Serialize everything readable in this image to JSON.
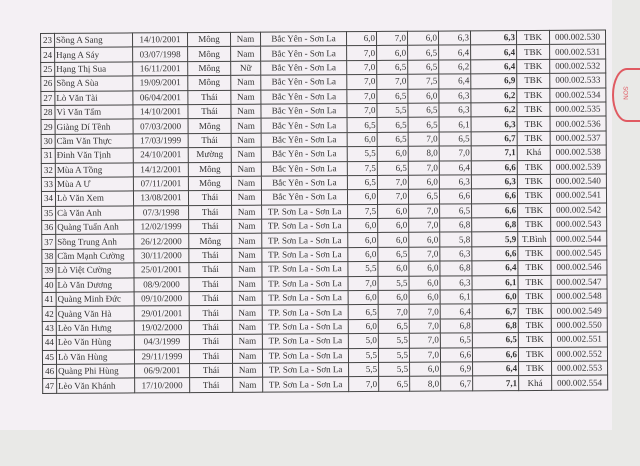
{
  "stamp_text": "SƠN",
  "rows": [
    [
      "23",
      "Sồng A Sang",
      "14/10/2001",
      "Mông",
      "Nam",
      "Bắc Yên - Sơn La",
      "6,0",
      "7,0",
      "6,0",
      "6,3",
      "6,3",
      "TBK",
      "000.002.530"
    ],
    [
      "24",
      "Hạng A Sáy",
      "03/07/1998",
      "Mông",
      "Nam",
      "Bắc Yên - Sơn La",
      "7,0",
      "6,0",
      "6,5",
      "6,4",
      "6,4",
      "TBK",
      "000.002.531"
    ],
    [
      "25",
      "Hạng Thị Sua",
      "16/11/2001",
      "Mông",
      "Nữ",
      "Bắc Yên - Sơn La",
      "7,0",
      "6,5",
      "6,5",
      "6,2",
      "6,4",
      "TBK",
      "000.002.532"
    ],
    [
      "26",
      "Sồng A Sùa",
      "19/09/2001",
      "Mông",
      "Nam",
      "Bắc Yên - Sơn La",
      "7,0",
      "7,0",
      "7,5",
      "6,4",
      "6,9",
      "TBK",
      "000.002.533"
    ],
    [
      "27",
      "Lò Văn Tài",
      "06/04/2001",
      "Thái",
      "Nam",
      "Bắc Yên - Sơn La",
      "7,0",
      "6,5",
      "6,0",
      "6,3",
      "6,2",
      "TBK",
      "000.002.534"
    ],
    [
      "28",
      "Vì Văn Tấm",
      "14/10/2001",
      "Thái",
      "Nam",
      "Bắc Yên - Sơn La",
      "7,0",
      "5,5",
      "6,5",
      "6,3",
      "6,2",
      "TBK",
      "000.002.535"
    ],
    [
      "29",
      "Giàng Dí Tềnh",
      "07/03/2000",
      "Mông",
      "Nam",
      "Bắc Yên - Sơn La",
      "6,5",
      "6,5",
      "6,5",
      "6,1",
      "6,3",
      "TBK",
      "000.002.536"
    ],
    [
      "30",
      "Cầm Văn Thực",
      "17/03/1999",
      "Thái",
      "Nam",
      "Bắc Yên - Sơn La",
      "6,0",
      "6,5",
      "7,0",
      "6,5",
      "6,7",
      "TBK",
      "000.002.537"
    ],
    [
      "31",
      "Đinh Văn Tịnh",
      "24/10/2001",
      "Mường",
      "Nam",
      "Bắc Yên - Sơn La",
      "5,5",
      "6,0",
      "8,0",
      "7,0",
      "7,1",
      "Khá",
      "000.002.538"
    ],
    [
      "32",
      "Mùa A Tồng",
      "14/12/2001",
      "Mông",
      "Nam",
      "Bắc Yên - Sơn La",
      "7,5",
      "6,5",
      "7,0",
      "6,4",
      "6,6",
      "TBK",
      "000.002.539"
    ],
    [
      "33",
      "Mùa A Ư",
      "07/11/2001",
      "Mông",
      "Nam",
      "Bắc Yên - Sơn La",
      "6,5",
      "7,0",
      "6,0",
      "6,3",
      "6,3",
      "TBK",
      "000.002.540"
    ],
    [
      "34",
      "Lò Văn Xem",
      "13/08/2001",
      "Thái",
      "Nam",
      "Bắc Yên - Sơn La",
      "6,0",
      "7,0",
      "6,5",
      "6,6",
      "6,6",
      "TBK",
      "000.002.541"
    ],
    [
      "35",
      "Cà Văn Anh",
      "07/3/1998",
      "Thái",
      "Nam",
      "TP. Sơn La - Sơn La",
      "7,5",
      "6,0",
      "7,0",
      "6,5",
      "6,6",
      "TBK",
      "000.002.542"
    ],
    [
      "36",
      "Quàng Tuấn Anh",
      "12/02/1999",
      "Thái",
      "Nam",
      "TP. Sơn La - Sơn La",
      "6,0",
      "6,0",
      "7,0",
      "6,8",
      "6,8",
      "TBK",
      "000.002.543"
    ],
    [
      "37",
      "Sồng Trung Anh",
      "26/12/2000",
      "Mông",
      "Nam",
      "TP. Sơn La - Sơn La",
      "6,0",
      "6,0",
      "6,0",
      "5,8",
      "5,9",
      "T.Bình",
      "000.002.544"
    ],
    [
      "38",
      "Cầm Mạnh Cường",
      "30/11/2000",
      "Thái",
      "Nam",
      "TP. Sơn La - Sơn La",
      "6,0",
      "6,5",
      "7,0",
      "6,3",
      "6,6",
      "TBK",
      "000.002.545"
    ],
    [
      "39",
      "Lò Việt Cường",
      "25/01/2001",
      "Thái",
      "Nam",
      "TP. Sơn La - Sơn La",
      "5,5",
      "6,0",
      "6,0",
      "6,8",
      "6,4",
      "TBK",
      "000.002.546"
    ],
    [
      "40",
      "Lò Văn Dương",
      "08/9/2000",
      "Thái",
      "Nam",
      "TP. Sơn La - Sơn La",
      "7,0",
      "5,5",
      "6,0",
      "6,3",
      "6,1",
      "TBK",
      "000.002.547"
    ],
    [
      "41",
      "Quàng Minh Đức",
      "09/10/2000",
      "Thái",
      "Nam",
      "TP. Sơn La - Sơn La",
      "6,0",
      "6,0",
      "6,0",
      "6,1",
      "6,0",
      "TBK",
      "000.002.548"
    ],
    [
      "42",
      "Quàng Văn Hà",
      "29/01/2001",
      "Thái",
      "Nam",
      "TP. Sơn La - Sơn La",
      "6,5",
      "7,0",
      "7,0",
      "6,4",
      "6,7",
      "TBK",
      "000.002.549"
    ],
    [
      "43",
      "Lèo Văn Hưng",
      "19/02/2000",
      "Thái",
      "Nam",
      "TP. Sơn La - Sơn La",
      "6,0",
      "6,5",
      "7,0",
      "6,8",
      "6,8",
      "TBK",
      "000.002.550"
    ],
    [
      "44",
      "Lèo Văn Hùng",
      "04/3/1999",
      "Thái",
      "Nam",
      "TP. Sơn La - Sơn La",
      "5,0",
      "5,5",
      "7,0",
      "6,5",
      "6,5",
      "TBK",
      "000.002.551"
    ],
    [
      "45",
      "Lò Văn Hùng",
      "29/11/1999",
      "Thái",
      "Nam",
      "TP. Sơn La - Sơn La",
      "5,5",
      "5,5",
      "7,0",
      "6,6",
      "6,6",
      "TBK",
      "000.002.552"
    ],
    [
      "46",
      "Quàng Phi Hùng",
      "06/9/2001",
      "Thái",
      "Nam",
      "TP. Sơn La - Sơn La",
      "5,5",
      "5,5",
      "6,0",
      "6,9",
      "6,4",
      "TBK",
      "000.002.553"
    ],
    [
      "47",
      "Lèo Văn Khánh",
      "17/10/2000",
      "Thái",
      "Nam",
      "TP. Sơn La - Sơn La",
      "7,0",
      "6,5",
      "8,0",
      "6,7",
      "7,1",
      "Khá",
      "000.002.554"
    ]
  ]
}
